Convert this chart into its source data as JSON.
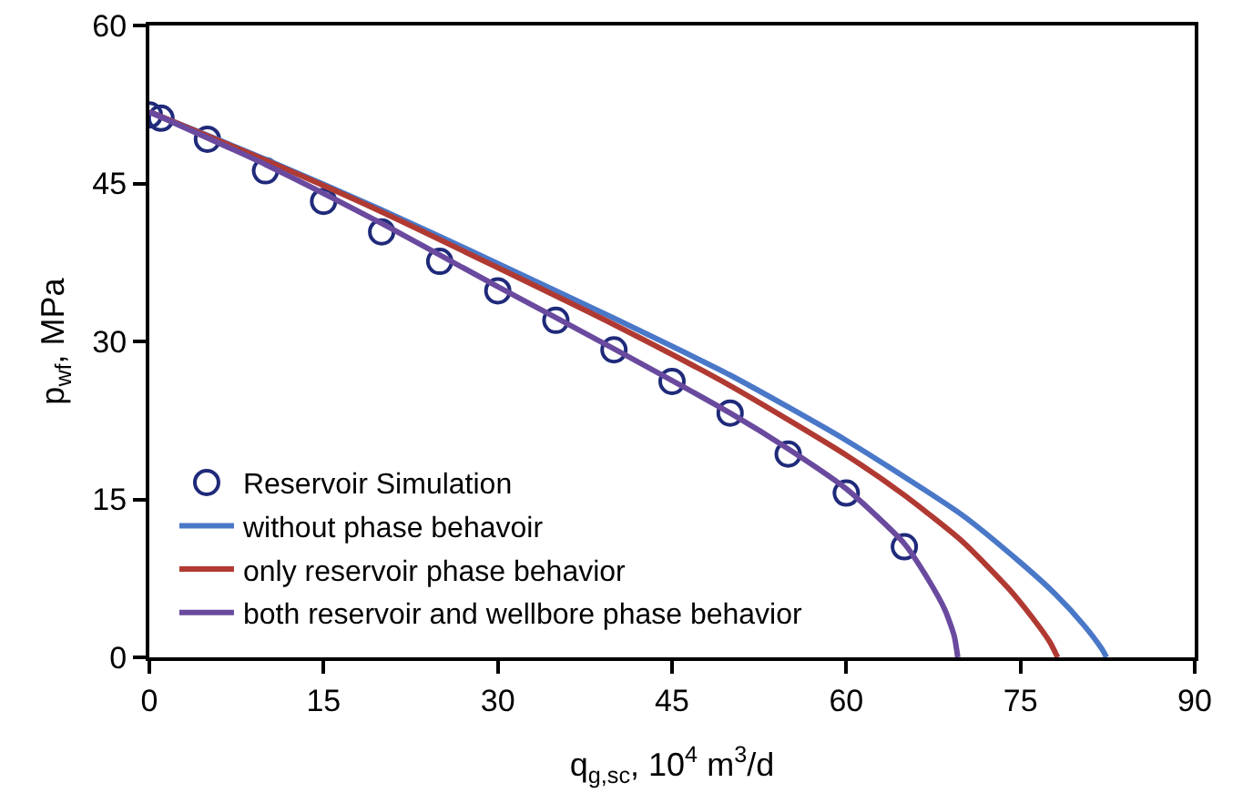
{
  "chart_data": {
    "type": "line",
    "xlabel": "q$_{g,sc}$, 10$^{4}$ m$^{3}$/d",
    "ylabel": "p$_{wf}$, MPa",
    "xlim": [
      0,
      90
    ],
    "xticks": [
      0,
      15,
      30,
      45,
      60,
      75,
      90
    ],
    "ylim": [
      0,
      60
    ],
    "yticks": [
      0,
      15,
      30,
      45,
      60
    ],
    "grid": false,
    "legend": "bottom left",
    "line_style": "solid",
    "series": [
      {
        "name": "Reservoir Simulation",
        "type": "scatter",
        "marker": "circle",
        "color": "#1f2a7a",
        "x": [
          0,
          1,
          5,
          10,
          15,
          20,
          25,
          30,
          35,
          40,
          45,
          50,
          55,
          60,
          65
        ],
        "values": [
          51.5,
          51.2,
          49.2,
          46.2,
          43.3,
          40.4,
          37.6,
          34.8,
          32.0,
          29.2,
          26.2,
          23.2,
          19.3,
          15.6,
          10.5
        ]
      },
      {
        "name": "without phase behavoir",
        "color": "#4a78c8",
        "x": [
          0,
          10,
          20,
          30,
          40,
          50,
          60,
          70,
          75,
          78,
          80.5,
          82,
          82.4
        ],
        "values": [
          51.8,
          47.3,
          42.5,
          37.4,
          32.2,
          26.8,
          20.6,
          13.5,
          9,
          6,
          3,
          0.8,
          0
        ]
      },
      {
        "name": "only reservoir phase behavior",
        "color": "#b03a32",
        "x": [
          0,
          10,
          20,
          30,
          40,
          50,
          60,
          65,
          70,
          74,
          76,
          77.5,
          78.2
        ],
        "values": [
          51.8,
          47.2,
          42.3,
          37,
          31.6,
          25.8,
          19.2,
          15.4,
          11,
          6.5,
          3.8,
          1.5,
          0
        ]
      },
      {
        "name": "both reservoir and wellbore phase behavior",
        "color": "#6a4a9e",
        "x": [
          0,
          10,
          20,
          30,
          40,
          50,
          55,
          60,
          65,
          67,
          68.5,
          69.3,
          69.6
        ],
        "values": [
          51.8,
          46.8,
          41.2,
          35.2,
          29.3,
          23.2,
          19.8,
          16,
          10.8,
          7.5,
          4.5,
          2,
          0
        ]
      }
    ]
  }
}
